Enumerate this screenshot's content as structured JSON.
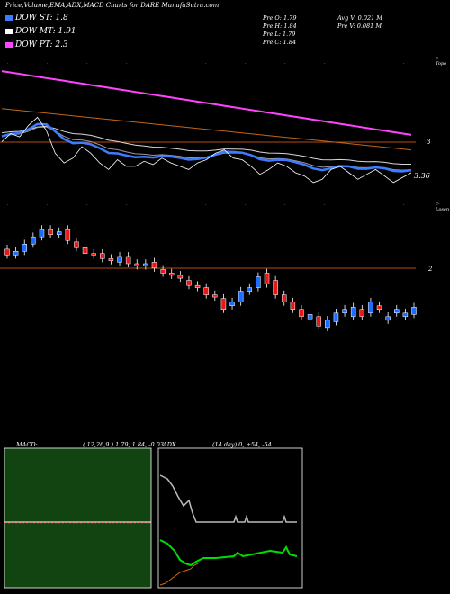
{
  "header": {
    "title": "Price,Volume,EMA,ADX,MACD Charts for DARE MunafaSutra.com",
    "dow_st": "DOW ST: 1.8",
    "dow_mt": "DOW MT: 1.91",
    "dow_pt": "DOW PT: 2.3",
    "prev_o": "Pre  O: 1.79",
    "prev_h": "Pre  H: 1.84",
    "prev_l": "Pre  L: 1.79",
    "prev_c": "Pre  C: 1.84",
    "avg_v": "Avg V: 0.021 M",
    "prev_v": "Pre  V: 0.081 M"
  },
  "colors": {
    "dow_st": "#3d7bff",
    "dow_mt": "#ffffff",
    "dow_pt": "#ff44ff",
    "bull": "#1e6bff",
    "bear": "#e81818",
    "level_line": "#b34a10",
    "macd_bg": "#114411",
    "adx_line": "#bbbbbb",
    "dmi_plus": "#00dd00",
    "dmi_minus": "#cc6a10"
  },
  "labels": {
    "ema_right": "c-Topo",
    "candle_right": "c-Losen",
    "ema_level": "3",
    "last_price": "3.36",
    "candle_level": "2"
  },
  "panels": {
    "macd_label": "MACD:",
    "macd_values": "( 12,26,9 ) 1.79,  1.84,  -0.03",
    "adx_label": "ADX",
    "adx_values": "(14  day) 0,  +54,  -54"
  },
  "chart_data": [
    {
      "type": "line",
      "title": "EMA",
      "series": [
        {
          "name": "Price",
          "values": [
            3.55,
            3.6,
            3.58,
            3.65,
            3.7,
            3.62,
            3.48,
            3.42,
            3.45,
            3.52,
            3.48,
            3.42,
            3.38,
            3.44,
            3.4,
            3.4,
            3.43,
            3.41,
            3.45,
            3.42,
            3.4,
            3.38,
            3.42,
            3.44,
            3.48,
            3.5,
            3.45,
            3.44,
            3.4,
            3.35,
            3.38,
            3.42,
            3.4,
            3.36,
            3.34,
            3.3,
            3.32,
            3.38,
            3.4,
            3.36,
            3.32,
            3.35,
            3.38,
            3.34,
            3.3,
            3.33,
            3.36
          ]
        }
      ]
    },
    {
      "type": "bar",
      "title": "Candles",
      "series": [
        {
          "name": "Open",
          "values": [
            2.78,
            2.7,
            2.75,
            2.85,
            2.95,
            3.05,
            2.98,
            3.05,
            2.88,
            2.8,
            2.72,
            2.72,
            2.65,
            2.6,
            2.68,
            2.58,
            2.55,
            2.6,
            2.5,
            2.45,
            2.42,
            2.35,
            2.28,
            2.25,
            2.15,
            2.1,
            2.0,
            2.05,
            2.2,
            2.25,
            2.45,
            2.35,
            2.15,
            2.05,
            1.95,
            1.82,
            1.85,
            1.7,
            1.78,
            1.9,
            1.85,
            1.95,
            1.9,
            2.0,
            1.8,
            1.9,
            1.85,
            1.88
          ]
        },
        {
          "name": "Close",
          "values": [
            2.7,
            2.75,
            2.85,
            2.95,
            3.05,
            2.98,
            3.02,
            2.9,
            2.8,
            2.72,
            2.7,
            2.65,
            2.62,
            2.68,
            2.58,
            2.55,
            2.58,
            2.52,
            2.45,
            2.42,
            2.38,
            2.28,
            2.25,
            2.15,
            2.12,
            1.95,
            2.05,
            2.2,
            2.25,
            2.4,
            2.3,
            2.15,
            2.05,
            1.95,
            1.85,
            1.88,
            1.72,
            1.8,
            1.9,
            1.95,
            1.98,
            1.85,
            2.05,
            1.95,
            1.85,
            1.95,
            1.9,
            1.98
          ]
        }
      ]
    }
  ]
}
